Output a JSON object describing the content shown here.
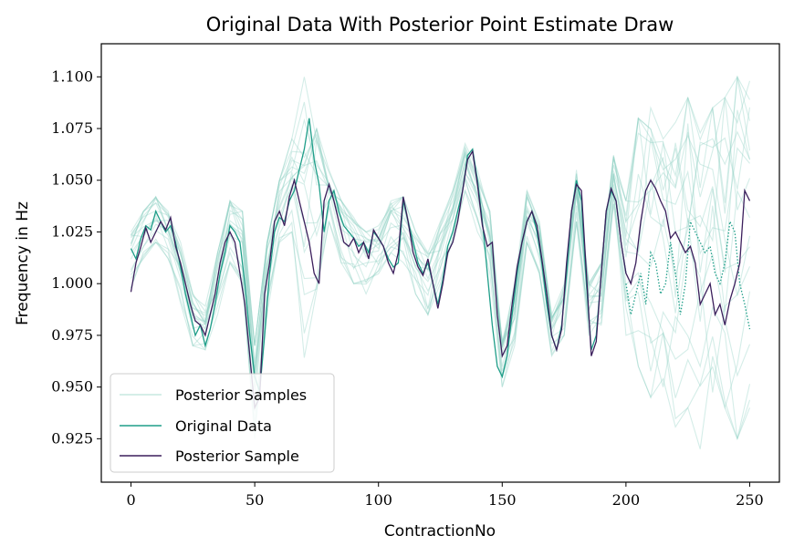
{
  "chart_data": {
    "type": "line",
    "title": "Original Data With Posterior Point Estimate Draw",
    "xlabel": "ContractionNo",
    "ylabel": "Frequency in Hz",
    "xlim": [
      -12,
      262
    ],
    "ylim": [
      0.904,
      1.116
    ],
    "xticks": [
      "0",
      "50",
      "100",
      "150",
      "200",
      "250"
    ],
    "yticks": [
      "0.925",
      "0.950",
      "0.975",
      "1.000",
      "1.025",
      "1.050",
      "1.075",
      "1.100"
    ],
    "grid": false,
    "legend_position": "lower-left",
    "colors": {
      "posterior_samples": "#8fd0c2",
      "original_data": "#1f9e89",
      "posterior_sample": "#3b1f5c"
    },
    "series": [
      {
        "name": "Posterior Samples",
        "style": "faint-band",
        "x": [
          0,
          5,
          10,
          15,
          20,
          25,
          30,
          35,
          40,
          45,
          50,
          55,
          60,
          65,
          70,
          75,
          80,
          85,
          90,
          95,
          100,
          105,
          110,
          115,
          120,
          125,
          130,
          135,
          140,
          145,
          150,
          155,
          160,
          165,
          170,
          175,
          180,
          185,
          190,
          195,
          200,
          205,
          210,
          215,
          220,
          225,
          230,
          235,
          240,
          245,
          250
        ],
        "lo": [
          0.998,
          1.012,
          1.02,
          1.012,
          0.99,
          0.97,
          0.968,
          0.985,
          1.01,
          1.0,
          0.925,
          0.985,
          1.02,
          1.025,
          0.96,
          0.99,
          1.03,
          1.01,
          1.0,
          0.995,
          1.0,
          1.015,
          1.01,
          0.995,
          0.985,
          1.0,
          1.02,
          1.045,
          1.025,
          1.005,
          0.95,
          0.97,
          1.02,
          1.005,
          0.965,
          0.975,
          1.03,
          0.975,
          0.98,
          1.035,
          0.975,
          0.96,
          0.945,
          0.95,
          0.93,
          0.94,
          0.92,
          0.93,
          0.94,
          0.925,
          0.94
        ],
        "hi": [
          1.025,
          1.035,
          1.042,
          1.035,
          1.02,
          0.995,
          0.99,
          1.015,
          1.04,
          1.035,
          0.97,
          1.02,
          1.05,
          1.07,
          1.1,
          1.075,
          1.055,
          1.04,
          1.032,
          1.025,
          1.028,
          1.04,
          1.042,
          1.025,
          1.015,
          1.03,
          1.045,
          1.068,
          1.055,
          1.035,
          0.975,
          1.0,
          1.045,
          1.03,
          0.985,
          1.0,
          1.055,
          1.0,
          1.01,
          1.062,
          1.04,
          1.08,
          1.085,
          1.07,
          1.078,
          1.09,
          1.075,
          1.085,
          1.09,
          1.1,
          1.098
        ]
      },
      {
        "name": "Original Data",
        "x": [
          0,
          2,
          4,
          6,
          8,
          10,
          12,
          14,
          16,
          18,
          20,
          22,
          24,
          26,
          28,
          30,
          32,
          34,
          36,
          38,
          40,
          42,
          44,
          46,
          48,
          50,
          52,
          54,
          56,
          58,
          60,
          62,
          64,
          66,
          68,
          70,
          72,
          74,
          76,
          78,
          80,
          82,
          84,
          86,
          88,
          90,
          92,
          94,
          96,
          98,
          100,
          102,
          104,
          106,
          108,
          110,
          112,
          114,
          116,
          118,
          120,
          122,
          124,
          126,
          128,
          130,
          132,
          134,
          136,
          138,
          140,
          142,
          144,
          146,
          148,
          150,
          152,
          154,
          156,
          158,
          160,
          162,
          164,
          166,
          168,
          170,
          172,
          174,
          176,
          178,
          180,
          182,
          184,
          186,
          188,
          190,
          192,
          194,
          196,
          198,
          200
        ],
        "values": [
          1.017,
          1.012,
          1.022,
          1.028,
          1.026,
          1.035,
          1.03,
          1.025,
          1.028,
          1.02,
          1.008,
          0.995,
          0.985,
          0.975,
          0.98,
          0.97,
          0.978,
          0.99,
          1.005,
          1.015,
          1.028,
          1.025,
          1.02,
          1.0,
          0.975,
          0.955,
          0.948,
          0.975,
          1.005,
          1.025,
          1.032,
          1.03,
          1.04,
          1.045,
          1.055,
          1.065,
          1.08,
          1.06,
          1.048,
          1.025,
          1.04,
          1.045,
          1.035,
          1.028,
          1.025,
          1.022,
          1.018,
          1.02,
          1.015,
          1.025,
          1.022,
          1.018,
          1.012,
          1.008,
          1.01,
          1.04,
          1.03,
          1.02,
          1.01,
          1.005,
          1.01,
          1.0,
          0.99,
          1.002,
          1.018,
          1.025,
          1.035,
          1.045,
          1.062,
          1.065,
          1.05,
          1.03,
          1.005,
          0.98,
          0.96,
          0.955,
          0.965,
          0.985,
          1.005,
          1.02,
          1.03,
          1.035,
          1.025,
          1.01,
          0.99,
          0.975,
          0.968,
          0.98,
          1.005,
          1.035,
          1.05,
          1.04,
          1.0,
          0.968,
          0.975,
          1.005,
          1.035,
          1.045,
          1.04,
          1.02,
          1.005
        ]
      },
      {
        "name": "Original Data (dotted continuation)",
        "style": "dotted",
        "x": [
          200,
          202,
          204,
          206,
          208,
          210,
          212,
          214,
          216,
          218,
          220,
          222,
          224,
          226,
          228,
          230,
          232,
          234,
          236,
          238,
          240,
          242,
          244,
          246,
          248,
          250
        ],
        "values": [
          1.0,
          0.985,
          0.995,
          1.005,
          0.99,
          1.015,
          1.01,
          0.995,
          1.0,
          1.02,
          1.005,
          0.985,
          1.0,
          1.03,
          1.025,
          1.02,
          1.015,
          1.018,
          1.005,
          1.0,
          1.01,
          1.03,
          1.025,
          1.0,
          0.99,
          0.978
        ]
      },
      {
        "name": "Posterior Sample",
        "x": [
          0,
          2,
          4,
          6,
          8,
          10,
          12,
          14,
          16,
          18,
          20,
          22,
          24,
          26,
          28,
          30,
          32,
          34,
          36,
          38,
          40,
          42,
          44,
          46,
          48,
          50,
          52,
          54,
          56,
          58,
          60,
          62,
          64,
          66,
          68,
          70,
          72,
          74,
          76,
          78,
          80,
          82,
          84,
          86,
          88,
          90,
          92,
          94,
          96,
          98,
          100,
          102,
          104,
          106,
          108,
          110,
          112,
          114,
          116,
          118,
          120,
          122,
          124,
          126,
          128,
          130,
          132,
          134,
          136,
          138,
          140,
          142,
          144,
          146,
          148,
          150,
          152,
          154,
          156,
          158,
          160,
          162,
          164,
          166,
          168,
          170,
          172,
          174,
          176,
          178,
          180,
          182,
          184,
          186,
          188,
          190,
          192,
          194,
          196,
          198,
          200,
          202,
          204,
          206,
          208,
          210,
          212,
          214,
          216,
          218,
          220,
          222,
          224,
          226,
          228,
          230,
          232,
          234,
          236,
          238,
          240,
          242,
          244,
          246,
          248,
          250
        ],
        "values": [
          0.996,
          1.01,
          1.018,
          1.027,
          1.02,
          1.025,
          1.03,
          1.026,
          1.032,
          1.018,
          1.01,
          1.0,
          0.99,
          0.982,
          0.98,
          0.975,
          0.985,
          0.995,
          1.01,
          1.02,
          1.025,
          1.02,
          1.005,
          0.99,
          0.965,
          0.94,
          0.945,
          0.995,
          1.01,
          1.03,
          1.035,
          1.028,
          1.042,
          1.05,
          1.04,
          1.03,
          1.02,
          1.005,
          1.0,
          1.04,
          1.048,
          1.04,
          1.03,
          1.02,
          1.018,
          1.022,
          1.015,
          1.02,
          1.012,
          1.026,
          1.022,
          1.018,
          1.01,
          1.005,
          1.015,
          1.042,
          1.03,
          1.015,
          1.008,
          1.004,
          1.012,
          1.0,
          0.988,
          1.0,
          1.015,
          1.02,
          1.03,
          1.045,
          1.06,
          1.064,
          1.048,
          1.028,
          1.018,
          1.02,
          0.985,
          0.965,
          0.97,
          0.99,
          1.008,
          1.02,
          1.03,
          1.035,
          1.028,
          1.012,
          0.995,
          0.975,
          0.968,
          0.978,
          1.01,
          1.035,
          1.048,
          1.045,
          1.005,
          0.965,
          0.972,
          1.005,
          1.035,
          1.046,
          1.04,
          1.02,
          1.005,
          1.0,
          1.01,
          1.03,
          1.045,
          1.05,
          1.046,
          1.04,
          1.035,
          1.022,
          1.025,
          1.02,
          1.015,
          1.018,
          1.01,
          0.99,
          0.995,
          1.0,
          0.985,
          0.99,
          0.98,
          0.992,
          1.0,
          1.01,
          1.045,
          1.04
        ]
      }
    ]
  }
}
